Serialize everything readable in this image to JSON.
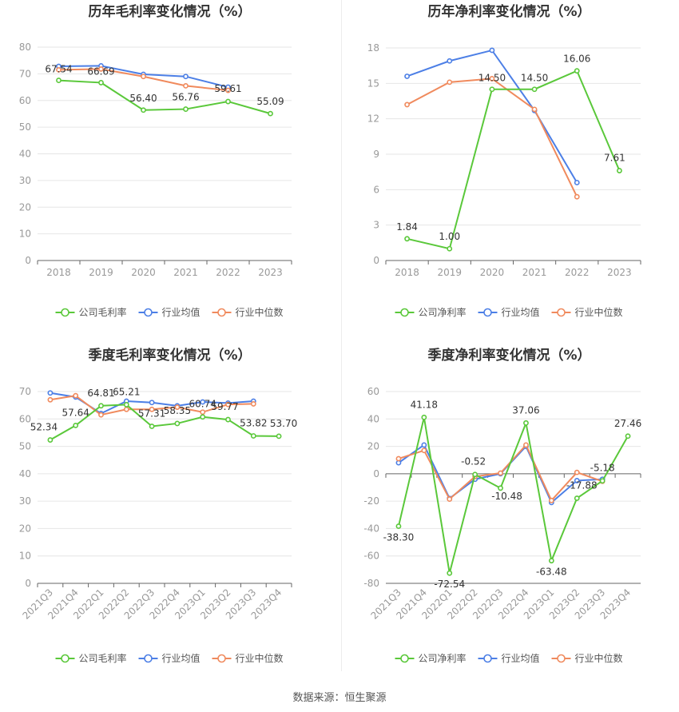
{
  "source": "数据来源：恒生聚源",
  "colors": {
    "company": "#5ac83a",
    "avg": "#4c7fe6",
    "median": "#f08a5d"
  },
  "chart_data": [
    {
      "type": "line",
      "title": "历年毛利率变化情况（%）",
      "categories": [
        "2018",
        "2019",
        "2020",
        "2021",
        "2022",
        "2023"
      ],
      "ylim": [
        0,
        80
      ],
      "yticks": [
        0,
        10,
        20,
        30,
        40,
        50,
        60,
        70,
        80
      ],
      "series": [
        {
          "name": "公司毛利率",
          "key": "company",
          "values": [
            67.54,
            66.69,
            56.4,
            56.76,
            59.61,
            55.09
          ],
          "labels": [
            "67.54",
            "66.69",
            "56.40",
            "56.76",
            "59.61",
            "55.09"
          ]
        },
        {
          "name": "行业均值",
          "key": "avg",
          "values": [
            72.8,
            73.0,
            69.8,
            69.0,
            65.0,
            null
          ]
        },
        {
          "name": "行业中位数",
          "key": "median",
          "values": [
            71.5,
            71.8,
            69.0,
            65.5,
            63.8,
            null
          ]
        }
      ]
    },
    {
      "type": "line",
      "title": "历年净利率变化情况（%）",
      "categories": [
        "2018",
        "2019",
        "2020",
        "2021",
        "2022",
        "2023"
      ],
      "ylim": [
        0,
        18
      ],
      "yticks": [
        0,
        3,
        6,
        9,
        12,
        15,
        18
      ],
      "series": [
        {
          "name": "公司净利率",
          "key": "company",
          "values": [
            1.84,
            1.0,
            14.5,
            14.5,
            16.06,
            7.61
          ],
          "labels": [
            "1.84",
            "1.00",
            "14.50",
            "14.50",
            "16.06",
            "7.61"
          ]
        },
        {
          "name": "行业均值",
          "key": "avg",
          "values": [
            15.6,
            16.9,
            17.8,
            12.7,
            6.6,
            null
          ]
        },
        {
          "name": "行业中位数",
          "key": "median",
          "values": [
            13.2,
            15.1,
            15.4,
            12.8,
            5.4,
            null
          ]
        }
      ]
    },
    {
      "type": "line",
      "title": "季度毛利率变化情况（%）",
      "categories": [
        "2021Q3",
        "2021Q4",
        "2022Q1",
        "2022Q2",
        "2022Q3",
        "2022Q4",
        "2023Q1",
        "2023Q2",
        "2023Q3",
        "2023Q4"
      ],
      "ylim": [
        0,
        70
      ],
      "yticks": [
        0,
        10,
        20,
        30,
        40,
        50,
        60,
        70
      ],
      "series": [
        {
          "name": "公司毛利率",
          "key": "company",
          "values": [
            52.34,
            57.64,
            64.81,
            65.21,
            57.31,
            58.35,
            60.74,
            59.77,
            53.82,
            53.7
          ],
          "labels": [
            "52.34",
            "57.64",
            "64.81",
            "65.21",
            "57.31",
            "58.35",
            "60.74",
            "59.77",
            "53.82",
            "53.70"
          ]
        },
        {
          "name": "行业均值",
          "key": "avg",
          "values": [
            69.5,
            68.0,
            62.0,
            66.5,
            66.0,
            64.8,
            66.2,
            65.8,
            66.5,
            null
          ]
        },
        {
          "name": "行业中位数",
          "key": "median",
          "values": [
            67.0,
            68.5,
            61.5,
            63.5,
            63.5,
            64.3,
            62.5,
            65.3,
            65.5,
            null
          ]
        }
      ]
    },
    {
      "type": "line",
      "title": "季度净利率变化情况（%）",
      "categories": [
        "2021Q3",
        "2021Q4",
        "2022Q1",
        "2022Q2",
        "2022Q3",
        "2022Q4",
        "2023Q1",
        "2023Q2",
        "2023Q3",
        "2023Q4"
      ],
      "ylim": [
        -80,
        60
      ],
      "yticks": [
        -80,
        -60,
        -40,
        -20,
        0,
        20,
        40,
        60
      ],
      "series": [
        {
          "name": "公司净利率",
          "key": "company",
          "values": [
            -38.3,
            41.18,
            -72.54,
            -0.52,
            -10.48,
            37.06,
            -63.48,
            -17.88,
            -5.18,
            27.46
          ],
          "labels": [
            "-38.30",
            "41.18",
            "-72.54",
            "-0.52",
            "-10.48",
            "37.06",
            "-63.48",
            "-17.88",
            "-5.18",
            "27.46"
          ]
        },
        {
          "name": "行业均值",
          "key": "avg",
          "values": [
            8.0,
            21.0,
            -18.0,
            -4.0,
            0.0,
            20.0,
            -21.0,
            -5.0,
            -4.0,
            null
          ]
        },
        {
          "name": "行业中位数",
          "key": "median",
          "values": [
            11.0,
            17.0,
            -18.5,
            -2.0,
            0.5,
            21.0,
            -19.5,
            1.0,
            -5.5,
            null
          ]
        }
      ]
    }
  ]
}
